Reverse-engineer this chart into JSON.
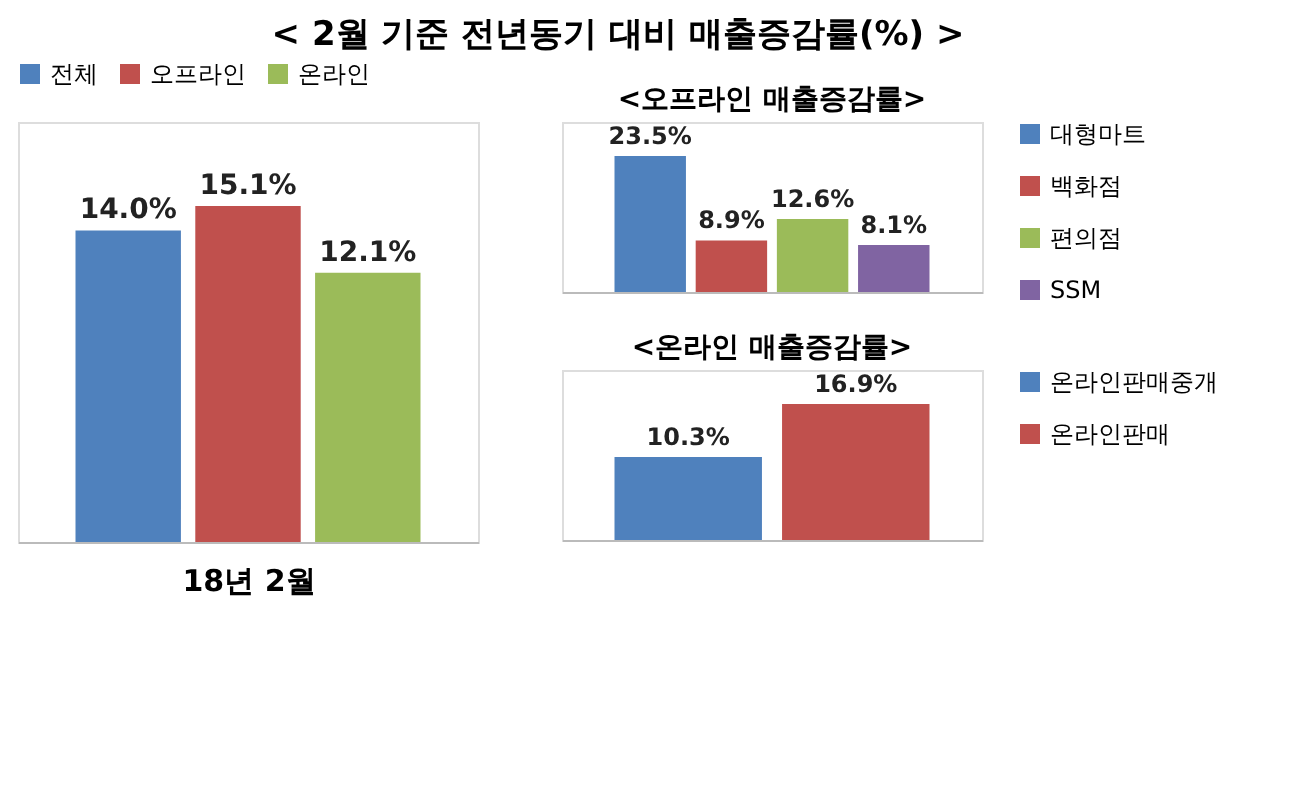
{
  "chart_data": [
    {
      "type": "bar",
      "title": "< 2월 기준 전년동기 대비 매출증감률(%) >",
      "categories": [
        null
      ],
      "xlabel": "18년 2월",
      "legend": "top",
      "tick_labels": false,
      "series": [
        {
          "name": "전체",
          "color": "#4f81bd",
          "values": [
            14.0
          ],
          "value_labels": [
            "14.0%"
          ]
        },
        {
          "name": "오프라인",
          "color": "#c0504d",
          "values": [
            15.1
          ],
          "value_labels": [
            "15.1%"
          ]
        },
        {
          "name": "온라인",
          "color": "#9bbb59",
          "values": [
            12.1
          ],
          "value_labels": [
            "12.1%"
          ]
        }
      ]
    },
    {
      "type": "bar",
      "title": "<오프라인 매출증감률>",
      "categories": [
        null
      ],
      "legend": "right",
      "tick_labels": false,
      "series": [
        {
          "name": "대형마트",
          "color": "#4f81bd",
          "values": [
            23.5
          ],
          "value_labels": [
            "23.5%"
          ]
        },
        {
          "name": "백화점",
          "color": "#c0504d",
          "values": [
            8.9
          ],
          "value_labels": [
            "8.9%"
          ]
        },
        {
          "name": "편의점",
          "color": "#9bbb59",
          "values": [
            12.6
          ],
          "value_labels": [
            "12.6%"
          ]
        },
        {
          "name": "SSM",
          "color": "#8064a2",
          "values": [
            8.1
          ],
          "value_labels": [
            "8.1%"
          ]
        }
      ]
    },
    {
      "type": "bar",
      "title": "<온라인 매출증감률>",
      "categories": [
        null
      ],
      "legend": "right",
      "tick_labels": false,
      "series": [
        {
          "name": "온라인판매중개",
          "color": "#4f81bd",
          "values": [
            10.3
          ],
          "value_labels": [
            "10.3%"
          ]
        },
        {
          "name": "온라인판매",
          "color": "#c0504d",
          "values": [
            16.9
          ],
          "value_labels": [
            "16.9%"
          ]
        }
      ]
    }
  ]
}
